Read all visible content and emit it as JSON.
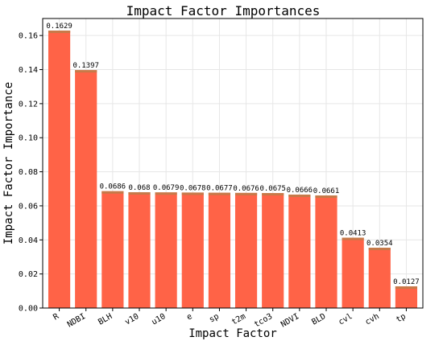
{
  "chart_data": {
    "type": "bar",
    "title": "Impact Factor Importances",
    "xlabel": "Impact Factor",
    "ylabel": "Impact Factor Importance",
    "categories": [
      "R",
      "NDBI",
      "BLH",
      "v10",
      "u10",
      "e",
      "sp",
      "t2m",
      "tco3",
      "NDVI",
      "BLD",
      "cvl",
      "cvh",
      "tp"
    ],
    "values": [
      0.1629,
      0.1397,
      0.0686,
      0.068,
      0.0679,
      0.0678,
      0.0677,
      0.0676,
      0.0675,
      0.0666,
      0.0661,
      0.0413,
      0.0354,
      0.0127
    ],
    "value_labels": [
      "0.1629",
      "0.1397",
      "0.0686",
      "0.068",
      "0.0679",
      "0.0678",
      "0.0677",
      "0.0676",
      "0.0675",
      "0.0666",
      "0.0661",
      "0.0413",
      "0.0354",
      "0.0127"
    ],
    "yticks": [
      "0.00",
      "0.02",
      "0.04",
      "0.06",
      "0.08",
      "0.10",
      "0.12",
      "0.14",
      "0.16"
    ],
    "ylim": [
      0,
      0.17
    ],
    "grid": true,
    "colors": {
      "bar": "#ff6347",
      "bar_top": "#b8804a",
      "label_top": "#c71585",
      "grid": "#e6e6e6"
    }
  }
}
